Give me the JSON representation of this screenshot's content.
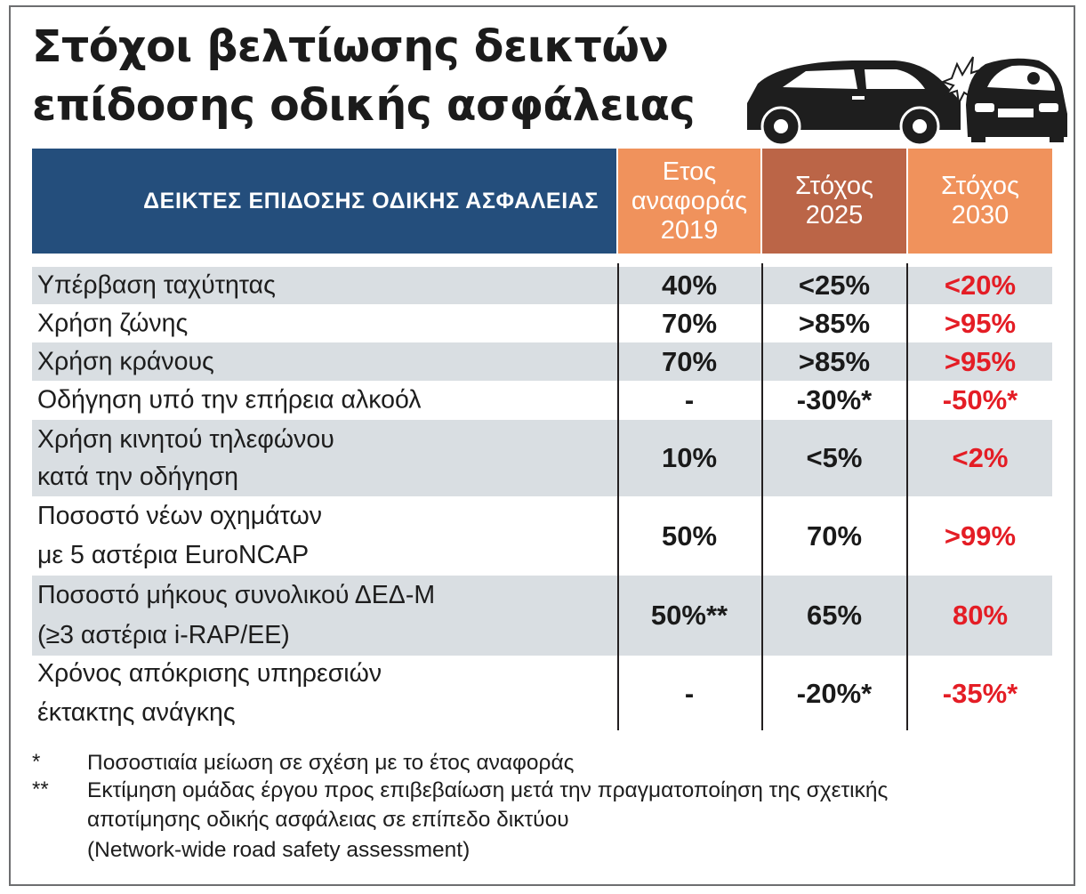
{
  "title": {
    "line1": "Στόχοι βελτίωσης δεικτών",
    "line2": "επίδοσης οδικής ασφάλειας"
  },
  "illustration": {
    "icon": "car-crash-icon"
  },
  "table": {
    "headers": {
      "indicator": "ΔΕΙΚΤΕΣ ΕΠΙΔΟΣΗΣ ΟΔΙΚΗΣ ΑΣΦΑΛΕΙΑΣ",
      "reference": [
        "Ετος",
        "αναφοράς",
        "2019"
      ],
      "target2025": [
        "Στόχος",
        "2025"
      ],
      "target2030": [
        "Στόχος",
        "2030"
      ]
    },
    "rows": [
      {
        "label": [
          "Υπέρβαση ταχύτητας"
        ],
        "ref": "40%",
        "t2025": "<25%",
        "t2030": "<20%"
      },
      {
        "label": [
          "Χρήση ζώνης"
        ],
        "ref": "70%",
        "t2025": ">85%",
        "t2030": ">95%"
      },
      {
        "label": [
          "Χρήση κράνους"
        ],
        "ref": "70%",
        "t2025": ">85%",
        "t2030": ">95%"
      },
      {
        "label": [
          "Οδήγηση υπό την επήρεια αλκοόλ"
        ],
        "ref": "-",
        "t2025": "-30%*",
        "t2030": "-50%*"
      },
      {
        "label": [
          "Χρήση κινητού τηλεφώνου",
          "κατά την οδήγηση"
        ],
        "ref": "10%",
        "t2025": "<5%",
        "t2030": "<2%"
      },
      {
        "label": [
          "Ποσοστό νέων οχημάτων",
          "με 5 αστέρια EuroNCAP"
        ],
        "ref": "50%",
        "t2025": "70%",
        "t2030": ">99%"
      },
      {
        "label": [
          "Ποσοστό μήκους συνολικού ΔΕΔ-Μ",
          "(≥3 αστέρια i-RAP/EE)"
        ],
        "ref": "50%**",
        "t2025": "65%",
        "t2030": "80%"
      },
      {
        "label": [
          "Χρόνος απόκρισης υπηρεσιών",
          "έκτακτης ανάγκης"
        ],
        "ref": "-",
        "t2025": "-20%*",
        "t2030": "-35%*"
      }
    ]
  },
  "footnotes": [
    {
      "symbol": "*",
      "lines": [
        "Ποσοστιαία μείωση σε σχέση με το έτος αναφοράς"
      ]
    },
    {
      "symbol": "**",
      "lines": [
        "Εκτίμηση ομάδας έργου προς επιβεβαίωση μετά την πραγματοποίηση της σχετικής",
        "αποτίμησης οδικής ασφάλειας σε επίπεδο δικτύου",
        "(Network-wide road safety assessment)"
      ]
    }
  ],
  "colors": {
    "header_blue": "#244e7c",
    "header_orange": "#f0925c",
    "header_brown": "#bb6547",
    "row_shade": "#d9dee2",
    "target_red": "#e41d25",
    "frame": "#6d6e70"
  }
}
